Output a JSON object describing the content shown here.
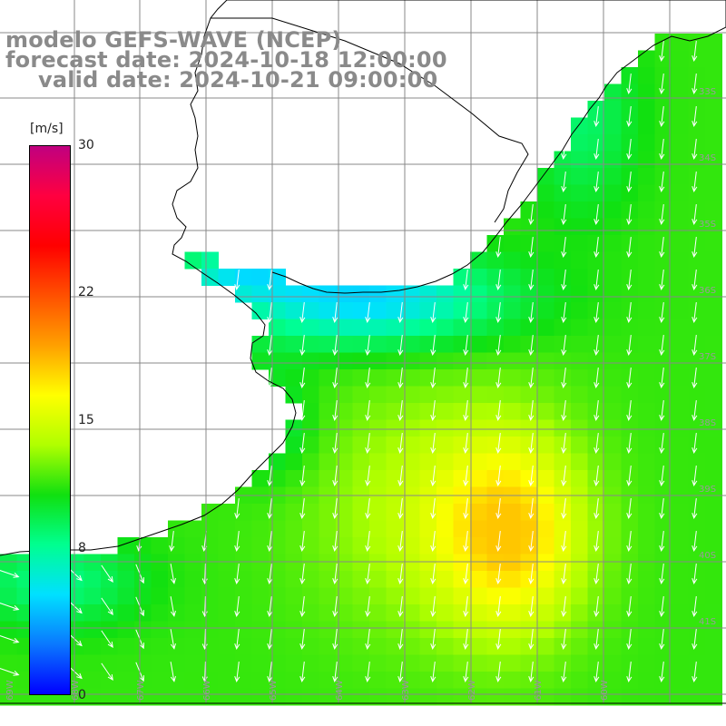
{
  "title": {
    "model": "modelo GEFS-WAVE (NCEP)",
    "forecast": "forecast date: 2024-10-18 12:00:00",
    "valid": "valid date: 2024-10-21 09:00:00"
  },
  "colorbar": {
    "unit": "[m/s]",
    "min": 0,
    "max": 30,
    "ticks": [
      "30",
      "22",
      "15",
      "8",
      "0"
    ],
    "tick_values": [
      30,
      22,
      15,
      8,
      0
    ],
    "colors": [
      "#0000ff",
      "#0a78ff",
      "#00e0ff",
      "#00ff90",
      "#10e010",
      "#b0ff00",
      "#ffff00",
      "#ffa000",
      "#ff5000",
      "#ff0000",
      "#ff0040",
      "#c00080"
    ]
  },
  "map": {
    "background": "#ffffff",
    "grid_color": "#888888",
    "coast_color": "#000000",
    "arrow_color": "#ffffff",
    "lon_labels": [
      "69W",
      "68W",
      "67W",
      "66W",
      "65W",
      "64W",
      "63W",
      "62W",
      "61W",
      "60W"
    ],
    "lat_labels": [
      "33S",
      "34S",
      "35S",
      "36S",
      "37S",
      "38S",
      "39S",
      "40S",
      "41S"
    ]
  }
}
